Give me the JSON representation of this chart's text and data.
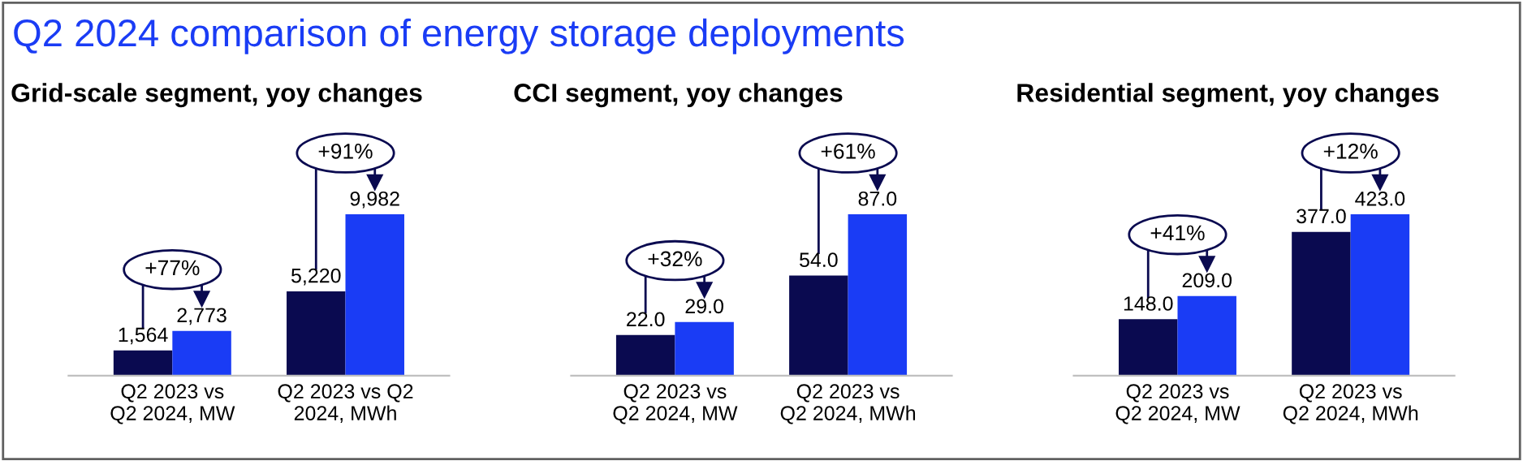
{
  "chart_data": [
    {
      "type": "bar",
      "title": "Q2 2024 comparison of energy storage deployments",
      "subtitle": "Grid-scale segment, yoy changes",
      "categories": [
        "Q2 2023 vs\nQ2 2024, MW",
        "Q2 2023 vs Q2\n2024, MWh"
      ],
      "series": [
        {
          "color": "#0a0a50",
          "values": [
            1564,
            5220
          ],
          "value_labels": [
            "1,564",
            "5,220"
          ]
        },
        {
          "color": "#1a3cf5",
          "values": [
            2773,
            9982
          ],
          "value_labels": [
            "2,773",
            "9,982"
          ]
        }
      ],
      "annotations": [
        "+77%",
        "+91%"
      ],
      "grid": false
    },
    {
      "type": "bar",
      "subtitle": "CCI segment, yoy changes",
      "categories": [
        "Q2 2023 vs\nQ2 2024, MW",
        "Q2 2023 vs\nQ2 2024, MWh"
      ],
      "series": [
        {
          "color": "#0a0a50",
          "values": [
            22.0,
            54.0
          ],
          "value_labels": [
            "22.0",
            "54.0"
          ]
        },
        {
          "color": "#1a3cf5",
          "values": [
            29.0,
            87.0
          ],
          "value_labels": [
            "29.0",
            "87.0"
          ]
        }
      ],
      "annotations": [
        "+32%",
        "+61%"
      ],
      "grid": false
    },
    {
      "type": "bar",
      "subtitle": "Residential segment, yoy changes",
      "categories": [
        "Q2 2023 vs\nQ2 2024, MW",
        "Q2 2023 vs\nQ2 2024, MWh"
      ],
      "series": [
        {
          "color": "#0a0a50",
          "values": [
            148.0,
            377.0
          ],
          "value_labels": [
            "148.0",
            "377.0"
          ]
        },
        {
          "color": "#1a3cf5",
          "values": [
            209.0,
            423.0
          ],
          "value_labels": [
            "209.0",
            "423.0"
          ]
        }
      ],
      "annotations": [
        "+41%",
        "+12%"
      ],
      "grid": false
    }
  ]
}
